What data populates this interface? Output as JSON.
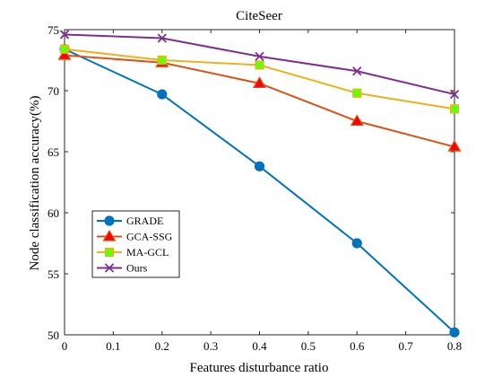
{
  "chart_data": {
    "type": "line",
    "title": "CiteSeer",
    "xlabel": "Features disturbance ratio",
    "ylabel": "Node classification accuracy(%)",
    "xlim": [
      0,
      0.8
    ],
    "ylim": [
      50,
      75
    ],
    "x_ticks": [
      "0",
      "0.1",
      "0.2",
      "0.3",
      "0.4",
      "0.5",
      "0.6",
      "0.7",
      "0.8"
    ],
    "y_ticks": [
      "50",
      "55",
      "60",
      "65",
      "70",
      "75"
    ],
    "grid": false,
    "legend_position": "bottom-left",
    "x": [
      0,
      0.2,
      0.4,
      0.6,
      0.8
    ],
    "series": [
      {
        "name": "GRADE",
        "values": [
          73.4,
          69.7,
          63.8,
          57.5,
          50.2
        ],
        "color": "#0072BD",
        "marker": "circle",
        "marker_fill": "#0072BD"
      },
      {
        "name": "GCA-SSG",
        "values": [
          72.9,
          72.3,
          70.6,
          67.5,
          65.4
        ],
        "color": "#D95319",
        "marker": "triangle",
        "marker_fill": "#FF0000"
      },
      {
        "name": "MA-GCL",
        "values": [
          73.4,
          72.5,
          72.1,
          69.8,
          68.5
        ],
        "color": "#EDB120",
        "marker": "square",
        "marker_fill": "#66FF00"
      },
      {
        "name": "Ours",
        "values": [
          74.6,
          74.3,
          72.8,
          71.6,
          69.7
        ],
        "color": "#7E2F8E",
        "marker": "cross",
        "marker_fill": "none"
      }
    ]
  }
}
